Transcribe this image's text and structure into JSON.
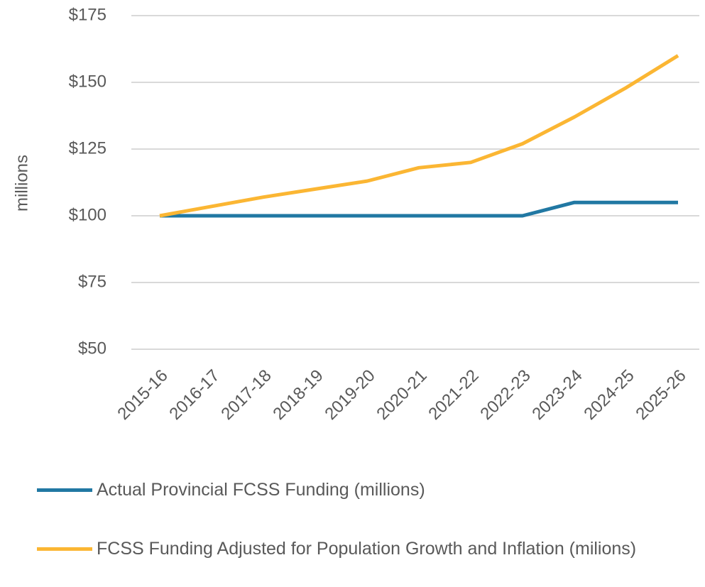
{
  "chart_data": {
    "type": "line",
    "y_label": "millions",
    "categories": [
      "2015-16",
      "2016-17",
      "2017-18",
      "2018-19",
      "2019-20",
      "2020-21",
      "2021-22",
      "2022-23",
      "2023-24",
      "2024-25",
      "2025-26"
    ],
    "series": [
      {
        "name": "Actual Provincial FCSS Funding (millions)",
        "color": "#2178a3",
        "values": [
          100,
          100,
          100,
          100,
          100,
          100,
          100,
          100,
          105,
          105,
          105
        ]
      },
      {
        "name": "FCSS Funding Adjusted for Population Growth and Inflation (milions)",
        "color": "#fbb633",
        "values": [
          100,
          103.5,
          107,
          110,
          113,
          118,
          120,
          127,
          137,
          148,
          160
        ]
      }
    ],
    "ylim": [
      50,
      175
    ],
    "yticks": [
      {
        "value": 50,
        "label": "$50"
      },
      {
        "value": 75,
        "label": "$75"
      },
      {
        "value": 100,
        "label": "$100"
      },
      {
        "value": 125,
        "label": "$125"
      },
      {
        "value": 150,
        "label": "$150"
      },
      {
        "value": 175,
        "label": "$175"
      }
    ],
    "grid": true
  }
}
